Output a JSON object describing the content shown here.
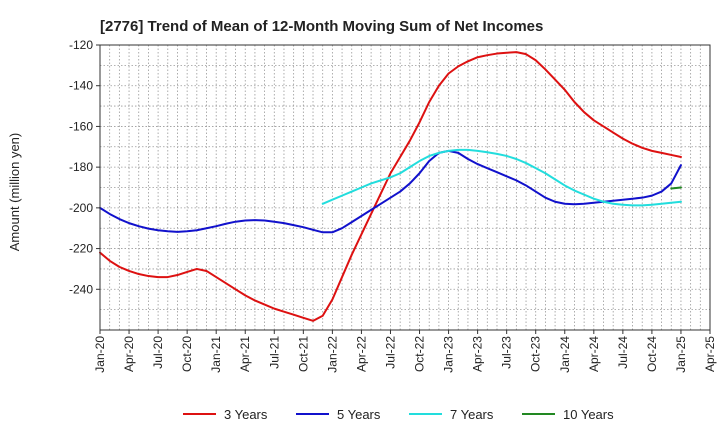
{
  "chart_data": {
    "type": "line",
    "title": "[2776]  Trend of Mean of 12-Month Moving Sum of Net Incomes",
    "ylabel": "Amount (million yen)",
    "xlabel": "",
    "ylim": [
      -260,
      -120
    ],
    "yticks": [
      -120,
      -140,
      -160,
      -180,
      -200,
      -220,
      -240
    ],
    "x_tick_labels": [
      "Jan-20",
      "Apr-20",
      "Jul-20",
      "Oct-20",
      "Jan-21",
      "Apr-21",
      "Jul-21",
      "Oct-21",
      "Jan-22",
      "Apr-22",
      "Jul-22",
      "Oct-22",
      "Jan-23",
      "Apr-23",
      "Jul-23",
      "Oct-23",
      "Jan-24",
      "Apr-24",
      "Jul-24",
      "Oct-24",
      "Jan-25",
      "Apr-25"
    ],
    "x_start": "Jan-20",
    "x_end": "Apr-25",
    "grid": true,
    "legend_position": "bottom",
    "series": [
      {
        "name": "3 Years",
        "color": "#dd1111",
        "x": [
          "Jan-20",
          "Feb-20",
          "Mar-20",
          "Apr-20",
          "May-20",
          "Jun-20",
          "Jul-20",
          "Aug-20",
          "Sep-20",
          "Oct-20",
          "Nov-20",
          "Dec-20",
          "Jan-21",
          "Feb-21",
          "Mar-21",
          "Apr-21",
          "May-21",
          "Jun-21",
          "Jul-21",
          "Aug-21",
          "Sep-21",
          "Oct-21",
          "Nov-21",
          "Dec-21",
          "Jan-22",
          "Feb-22",
          "Mar-22",
          "Apr-22",
          "May-22",
          "Jun-22",
          "Jul-22",
          "Aug-22",
          "Sep-22",
          "Oct-22",
          "Nov-22",
          "Dec-22",
          "Jan-23",
          "Feb-23",
          "Mar-23",
          "Apr-23",
          "May-23",
          "Jun-23",
          "Jul-23",
          "Aug-23",
          "Sep-23",
          "Oct-23",
          "Nov-23",
          "Dec-23",
          "Jan-24",
          "Feb-24",
          "Mar-24",
          "Apr-24",
          "May-24",
          "Jun-24",
          "Jul-24",
          "Aug-24",
          "Sep-24",
          "Oct-24",
          "Nov-24",
          "Dec-24",
          "Jan-25"
        ],
        "values": [
          -222,
          -226,
          -229,
          -231,
          -232.5,
          -233.5,
          -234,
          -234,
          -233,
          -231.5,
          -230,
          -231,
          -234,
          -237,
          -240,
          -243,
          -245.5,
          -247.5,
          -249.5,
          -251,
          -252.5,
          -254,
          -255.5,
          -253,
          -245,
          -234,
          -223,
          -213,
          -203,
          -193,
          -183,
          -175,
          -167,
          -158,
          -148,
          -140,
          -134,
          -130.5,
          -128,
          -126,
          -125,
          -124.2,
          -123.8,
          -123.5,
          -124.5,
          -127.5,
          -132,
          -137,
          -142,
          -148,
          -153,
          -157,
          -160,
          -163,
          -166,
          -168.5,
          -170.5,
          -172,
          -173,
          -174,
          -175
        ]
      },
      {
        "name": "5 Years",
        "color": "#1111cc",
        "x": [
          "Jan-20",
          "Feb-20",
          "Mar-20",
          "Apr-20",
          "May-20",
          "Jun-20",
          "Jul-20",
          "Aug-20",
          "Sep-20",
          "Oct-20",
          "Nov-20",
          "Dec-20",
          "Jan-21",
          "Feb-21",
          "Mar-21",
          "Apr-21",
          "May-21",
          "Jun-21",
          "Jul-21",
          "Aug-21",
          "Sep-21",
          "Oct-21",
          "Nov-21",
          "Dec-21",
          "Jan-22",
          "Feb-22",
          "Mar-22",
          "Apr-22",
          "May-22",
          "Jun-22",
          "Jul-22",
          "Aug-22",
          "Sep-22",
          "Oct-22",
          "Nov-22",
          "Dec-22",
          "Jan-23",
          "Feb-23",
          "Mar-23",
          "Apr-23",
          "May-23",
          "Jun-23",
          "Jul-23",
          "Aug-23",
          "Sep-23",
          "Oct-23",
          "Nov-23",
          "Dec-23",
          "Jan-24",
          "Feb-24",
          "Mar-24",
          "Apr-24",
          "May-24",
          "Jun-24",
          "Jul-24",
          "Aug-24",
          "Sep-24",
          "Oct-24",
          "Nov-24",
          "Dec-24",
          "Jan-25"
        ],
        "values": [
          -200,
          -203,
          -205.5,
          -207.5,
          -209,
          -210.2,
          -211,
          -211.5,
          -211.8,
          -211.5,
          -211,
          -210,
          -209,
          -207.8,
          -206.8,
          -206.2,
          -206,
          -206.2,
          -206.8,
          -207.5,
          -208.5,
          -209.5,
          -210.8,
          -212,
          -212,
          -210,
          -207,
          -204,
          -201,
          -198,
          -195,
          -192,
          -188,
          -183,
          -177,
          -173,
          -172,
          -173,
          -176,
          -178.5,
          -180.5,
          -182.5,
          -184.5,
          -186.5,
          -189,
          -192,
          -195,
          -197,
          -198,
          -198.2,
          -198,
          -197.5,
          -197,
          -196.5,
          -196,
          -195.5,
          -195,
          -194,
          -192,
          -188,
          -179
        ]
      },
      {
        "name": "7 Years",
        "color": "#22dddd",
        "x": [
          "Dec-21",
          "Jan-22",
          "Feb-22",
          "Mar-22",
          "Apr-22",
          "May-22",
          "Jun-22",
          "Jul-22",
          "Aug-22",
          "Sep-22",
          "Oct-22",
          "Nov-22",
          "Dec-22",
          "Jan-23",
          "Feb-23",
          "Mar-23",
          "Apr-23",
          "May-23",
          "Jun-23",
          "Jul-23",
          "Aug-23",
          "Sep-23",
          "Oct-23",
          "Nov-23",
          "Dec-23",
          "Jan-24",
          "Feb-24",
          "Mar-24",
          "Apr-24",
          "May-24",
          "Jun-24",
          "Jul-24",
          "Aug-24",
          "Sep-24",
          "Oct-24",
          "Nov-24",
          "Dec-24",
          "Jan-25"
        ],
        "values": [
          -198,
          -196,
          -194,
          -192,
          -190,
          -188,
          -186.5,
          -185,
          -183,
          -180,
          -177,
          -174.5,
          -173,
          -172,
          -171.5,
          -171.5,
          -172,
          -172.7,
          -173.5,
          -174.5,
          -176,
          -178,
          -180.5,
          -183,
          -186,
          -189,
          -191.5,
          -193.5,
          -195.5,
          -197,
          -198,
          -198.5,
          -198.8,
          -198.8,
          -198.5,
          -198,
          -197.5,
          -197
        ]
      },
      {
        "name": "10 Years",
        "color": "#228822",
        "x": [
          "Dec-24",
          "Jan-25"
        ],
        "values": [
          -190.5,
          -190
        ]
      }
    ]
  }
}
